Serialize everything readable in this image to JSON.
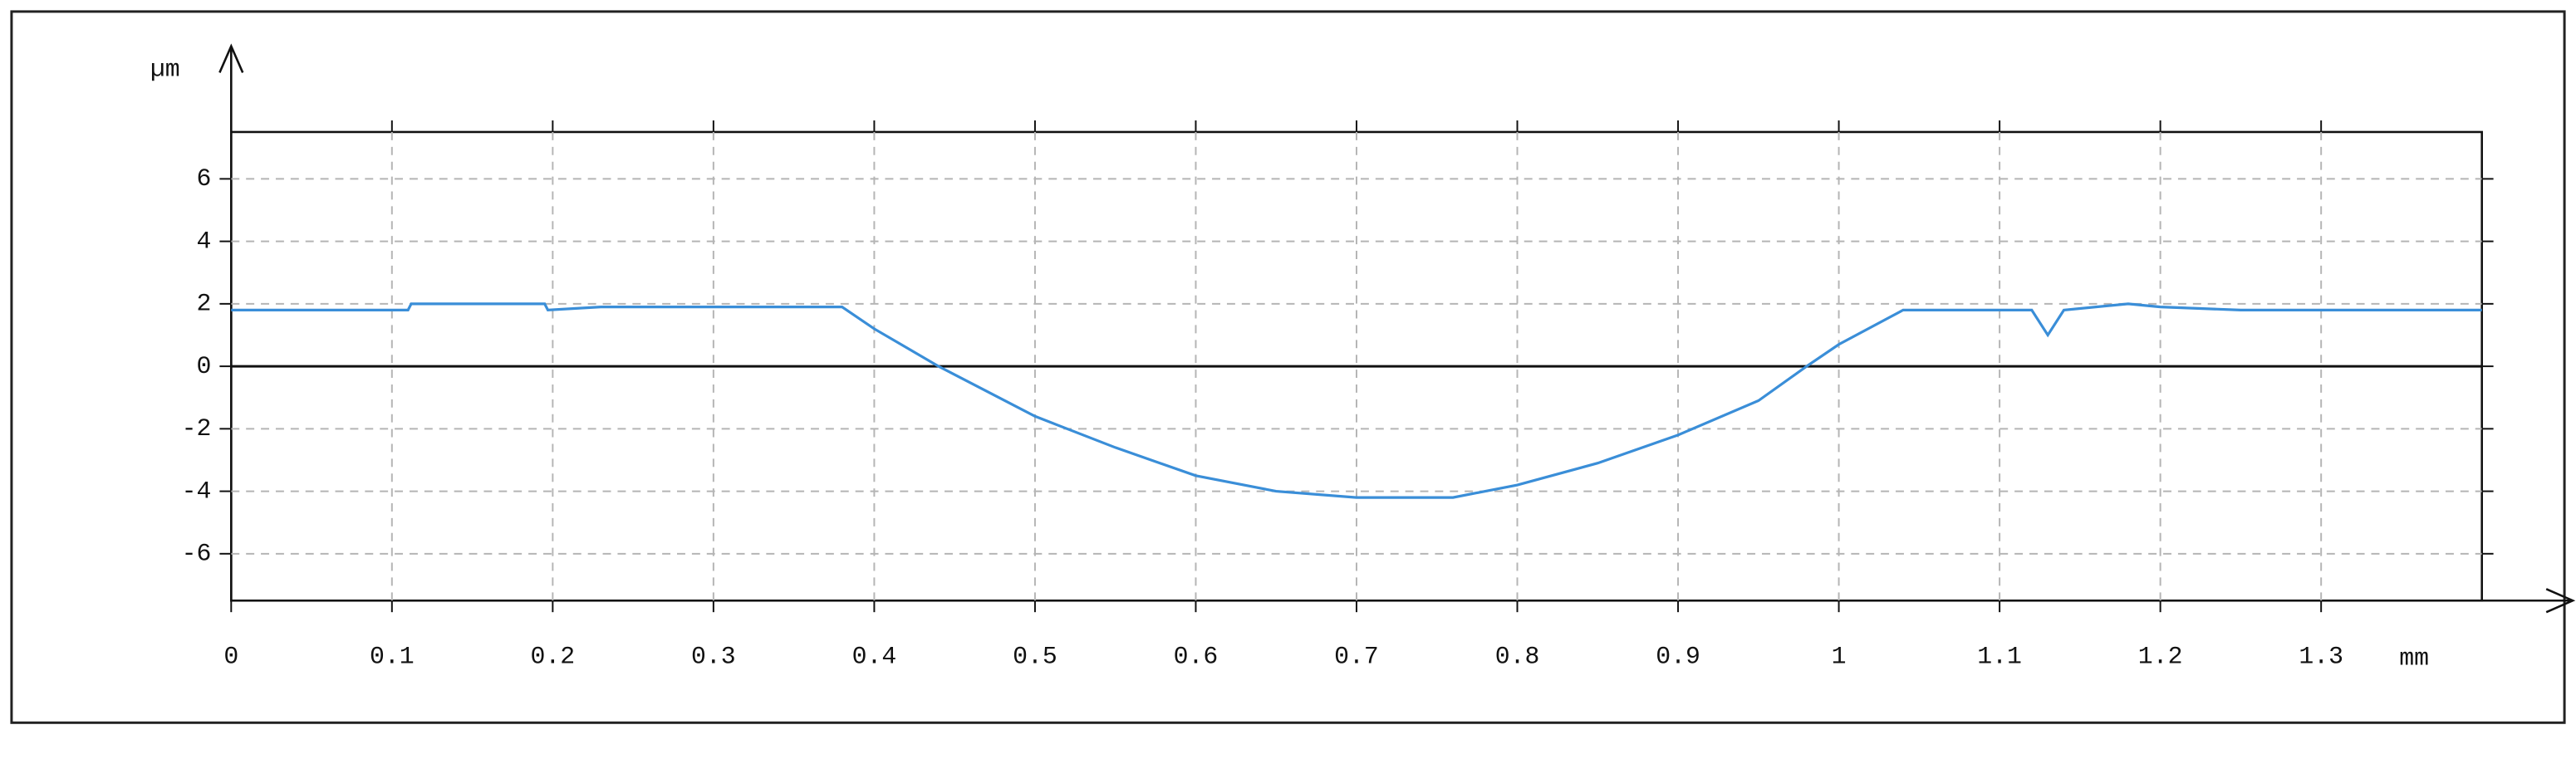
{
  "chart_data": {
    "type": "line",
    "y_unit": "µm",
    "x_unit": "mm",
    "x": [
      0,
      0.11,
      0.112,
      0.195,
      0.197,
      0.23,
      0.38,
      0.4,
      0.42,
      0.44,
      0.47,
      0.5,
      0.55,
      0.6,
      0.65,
      0.7,
      0.76,
      0.8,
      0.85,
      0.9,
      0.95,
      0.98,
      1.0,
      1.04,
      1.12,
      1.13,
      1.14,
      1.18,
      1.2,
      1.25,
      1.4
    ],
    "series": [
      {
        "color": "#3a8ed8",
        "values": [
          1.8,
          1.8,
          2.0,
          2.0,
          1.8,
          1.9,
          1.9,
          1.2,
          0.6,
          0,
          -0.8,
          -1.6,
          -2.6,
          -3.5,
          -4.0,
          -4.2,
          -4.2,
          -3.8,
          -3.1,
          -2.2,
          -1.1,
          0,
          0.7,
          1.8,
          1.8,
          1.0,
          1.8,
          2.0,
          1.9,
          1.8,
          1.8
        ]
      }
    ],
    "xlim": [
      0,
      1.4
    ],
    "ylim": [
      -7.5,
      7.5
    ],
    "xticks": [
      0,
      0.1,
      0.2,
      0.3,
      0.4,
      0.5,
      0.6,
      0.7,
      0.8,
      0.9,
      1,
      1.1,
      1.2,
      1.3
    ],
    "yticks": [
      -6,
      -4,
      -2,
      0,
      2,
      4,
      6
    ],
    "grid": true
  }
}
